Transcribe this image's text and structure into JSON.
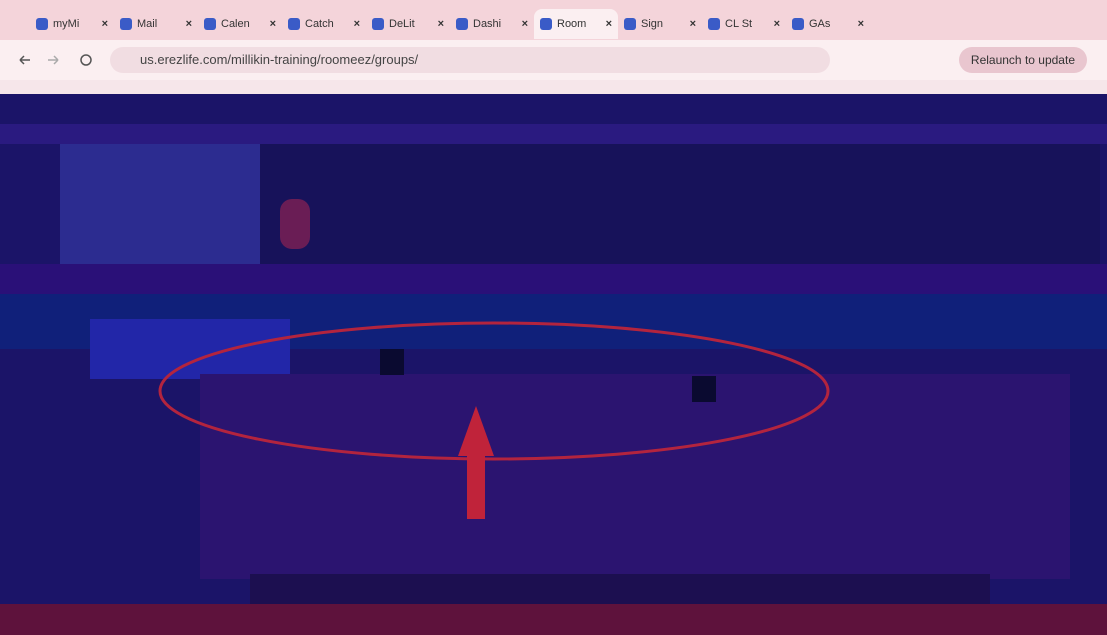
{
  "browser": {
    "tabs": [
      {
        "label": "myMi"
      },
      {
        "label": "Mail"
      },
      {
        "label": "Calen"
      },
      {
        "label": "Catch"
      },
      {
        "label": "DeLit"
      },
      {
        "label": "Dashi"
      },
      {
        "label": "Room"
      },
      {
        "label": "Sign"
      },
      {
        "label": "CL St"
      },
      {
        "label": "GAs"
      }
    ],
    "active_tab": 6,
    "url": "us.erezlife.com/millikin-training/roomeez/groups/",
    "relaunch": "Relaunch to update"
  }
}
